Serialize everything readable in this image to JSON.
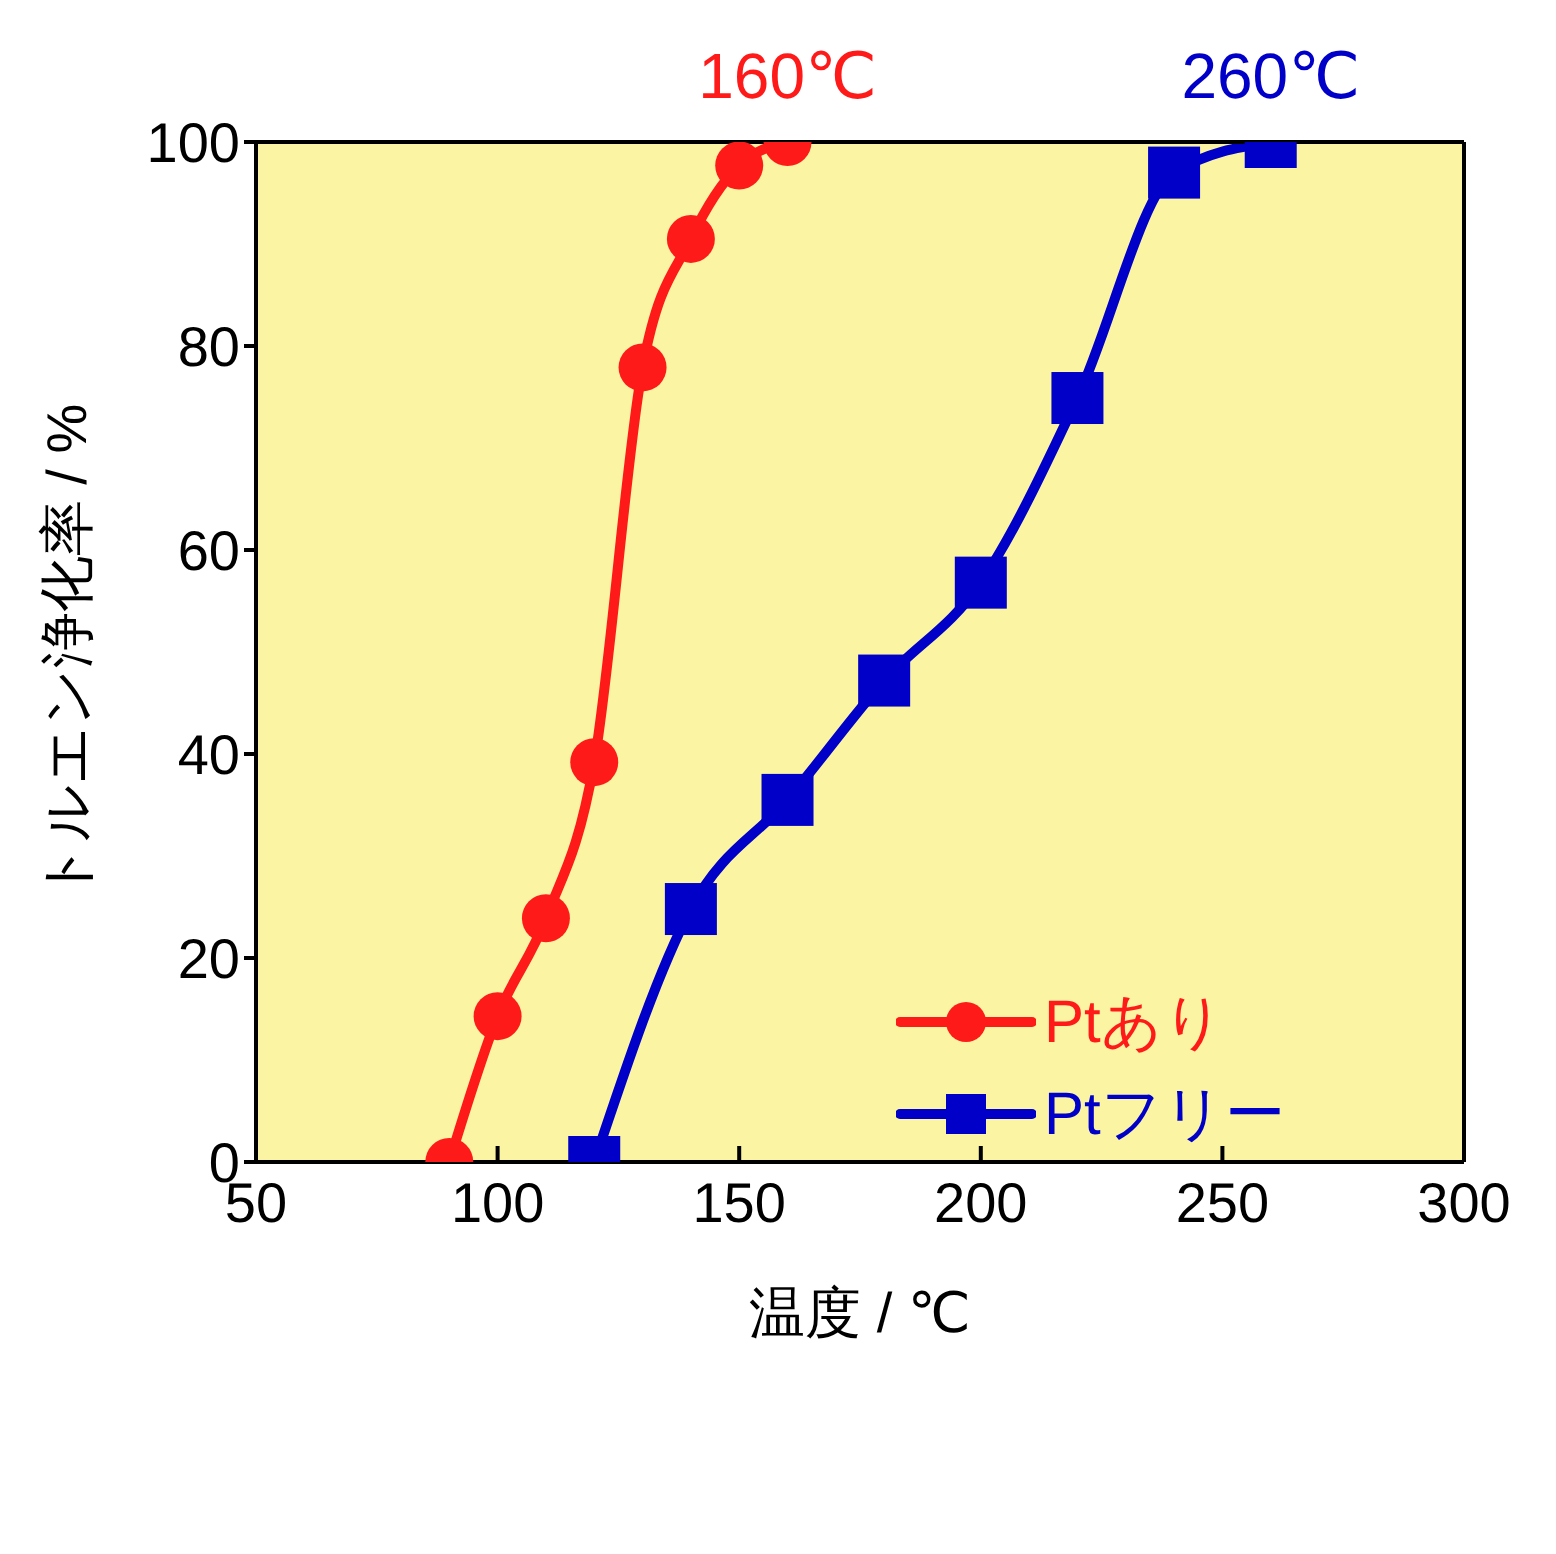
{
  "chart_data": {
    "type": "line",
    "xlabel": "温度 / ℃",
    "ylabel": "トルエン浄化率 / %",
    "xlim": [
      50,
      300
    ],
    "xticks": [
      50,
      100,
      150,
      200,
      250,
      300
    ],
    "ylim": [
      0,
      100
    ],
    "yticks": [
      0,
      20,
      40,
      60,
      80,
      100
    ],
    "grid": false,
    "legend": "right",
    "series": [
      {
        "name": "Ptあり",
        "color": "#ff1a1a",
        "marker": "circle",
        "x": [
          90,
          100,
          110,
          120,
          130,
          140,
          150,
          160
        ],
        "values": [
          0,
          14.3,
          23.9,
          39.2,
          77.9,
          90.5,
          97.7,
          100
        ]
      },
      {
        "name": "Ptフリー",
        "color": "#0000c8",
        "marker": "square",
        "x": [
          120,
          140,
          160,
          180,
          200,
          220,
          240,
          260
        ],
        "values": [
          0,
          24.8,
          35.5,
          47.2,
          56.8,
          74.9,
          97,
          100
        ]
      }
    ],
    "annotations": [
      {
        "text": "160℃",
        "x": 160,
        "y": 100
      },
      {
        "text": "260℃",
        "x": 260,
        "y": 100
      }
    ]
  }
}
